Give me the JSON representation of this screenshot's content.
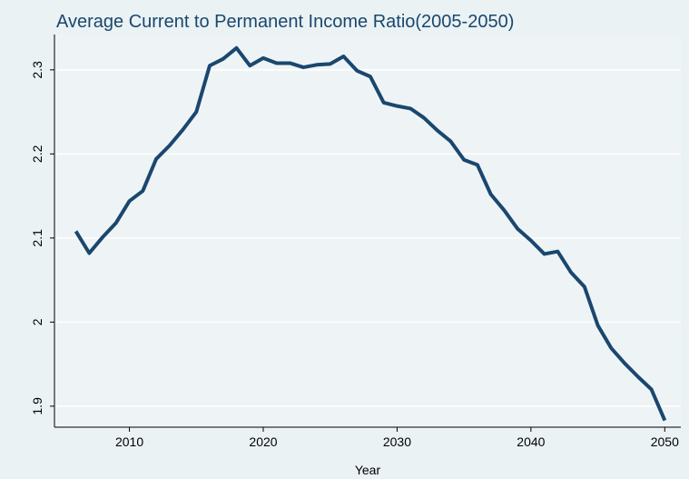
{
  "chart_data": {
    "type": "line",
    "title": "Average Current to Permanent Income Ratio(2005-2050)",
    "xlabel": "Year",
    "x": [
      2006,
      2007,
      2008,
      2009,
      2010,
      2011,
      2012,
      2013,
      2014,
      2015,
      2016,
      2017,
      2018,
      2019,
      2020,
      2021,
      2022,
      2023,
      2024,
      2025,
      2026,
      2027,
      2028,
      2029,
      2030,
      2031,
      2032,
      2033,
      2034,
      2035,
      2036,
      2037,
      2038,
      2039,
      2040,
      2041,
      2042,
      2043,
      2044,
      2045,
      2046,
      2047,
      2048,
      2049,
      2050
    ],
    "series": [
      {
        "name": "Average Current to Permanent Income Ratio",
        "color": "#1a476f",
        "values": [
          2.108,
          2.082,
          2.101,
          2.118,
          2.144,
          2.156,
          2.194,
          2.21,
          2.229,
          2.25,
          2.305,
          2.313,
          2.326,
          2.305,
          2.314,
          2.308,
          2.308,
          2.303,
          2.306,
          2.307,
          2.316,
          2.299,
          2.292,
          2.261,
          2.257,
          2.254,
          2.243,
          2.228,
          2.215,
          2.193,
          2.187,
          2.152,
          2.133,
          2.111,
          2.097,
          2.081,
          2.084,
          2.059,
          2.042,
          1.996,
          1.969,
          1.951,
          1.935,
          1.92,
          1.883
        ]
      }
    ],
    "xlim": [
      2004.4,
      2051.2
    ],
    "ylim": [
      1.875,
      2.342
    ],
    "xticks": [
      2010,
      2020,
      2030,
      2040,
      2050
    ],
    "yticks": [
      1.9,
      2,
      2.1,
      2.2,
      2.3
    ],
    "grid": true
  }
}
